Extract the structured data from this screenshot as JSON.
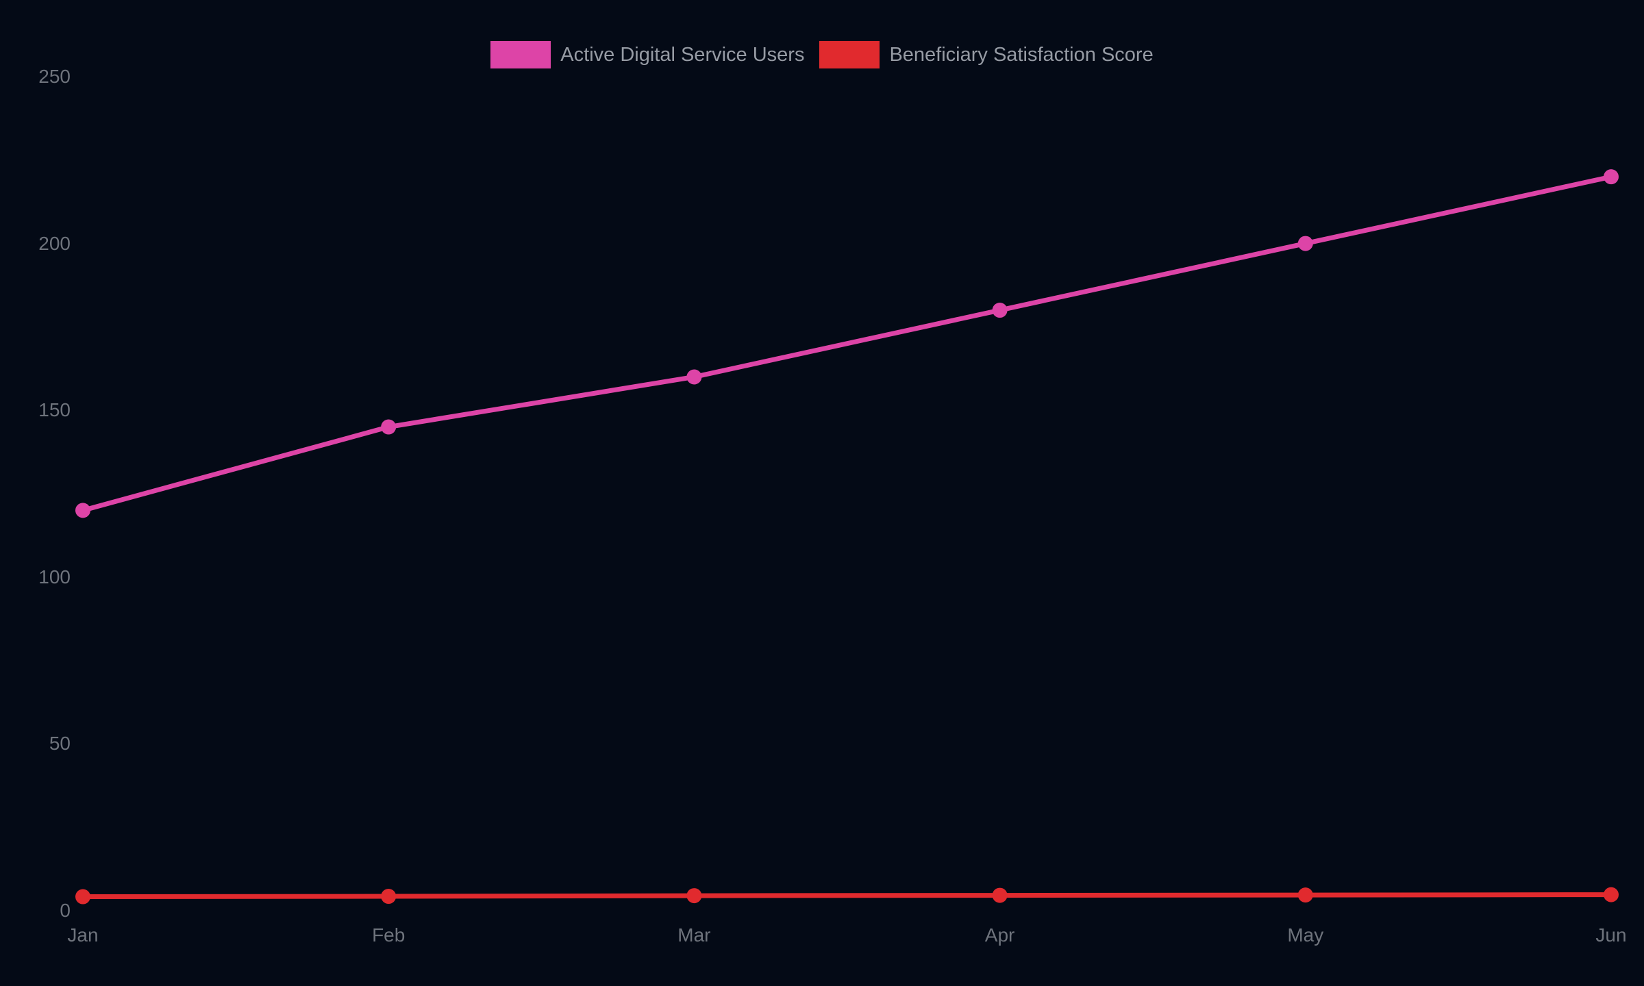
{
  "chart_data": {
    "type": "line",
    "title": "",
    "xlabel": "",
    "ylabel": "",
    "x": [
      "Jan",
      "Feb",
      "Mar",
      "Apr",
      "May",
      "Jun"
    ],
    "series": [
      {
        "name": "Active Digital Service Users",
        "color": "#dd44a7",
        "values": [
          120,
          145,
          160,
          180,
          200,
          220
        ]
      },
      {
        "name": "Beneficiary Satisfaction Score",
        "color": "#e12a2e",
        "values": [
          4.2,
          4.3,
          4.5,
          4.6,
          4.7,
          4.8
        ]
      }
    ],
    "ylim": [
      0,
      250
    ],
    "y_ticks": [
      0,
      50,
      100,
      150,
      200,
      250
    ],
    "grid": false,
    "legend_position": "top-center",
    "colors": {
      "background": "#040a16",
      "tick_text": "#6e737c",
      "legend_text": "#969ba4"
    }
  }
}
